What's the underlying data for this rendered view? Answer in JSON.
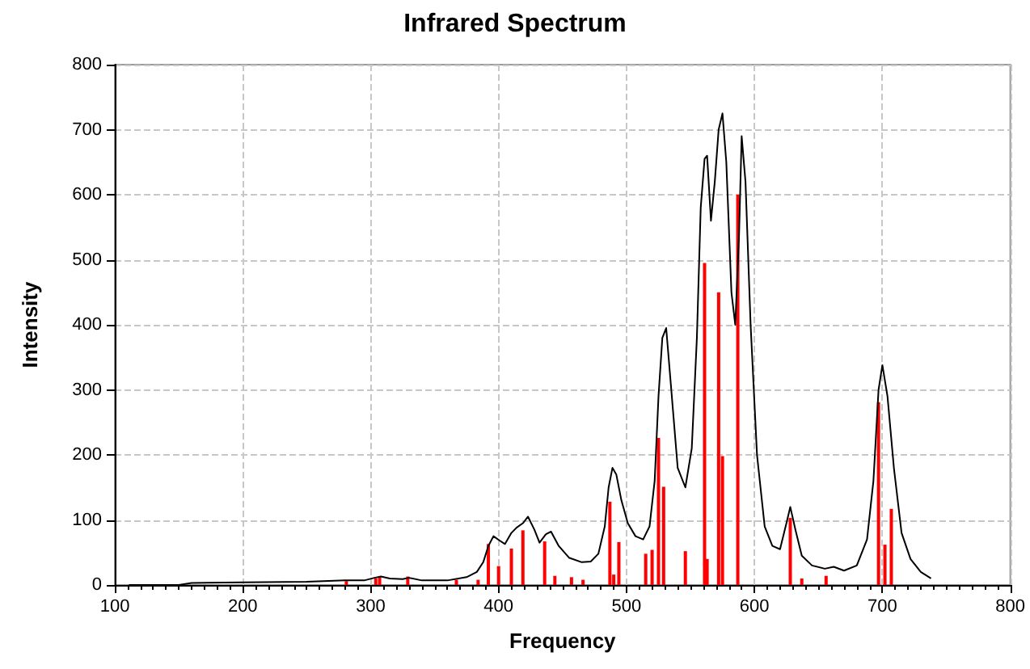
{
  "chart_data": {
    "type": "line",
    "title": "Infrared Spectrum",
    "xlabel": "Frequency",
    "ylabel": "Intensity",
    "xlim": [
      100,
      800
    ],
    "xticks": [
      100,
      200,
      300,
      400,
      500,
      600,
      700,
      800
    ],
    "ylim": [
      0,
      800
    ],
    "yticks": [
      0,
      100,
      200,
      300,
      400,
      500,
      600,
      700,
      800
    ],
    "grid": true,
    "marker": "none",
    "series": [
      {
        "color": "#000000",
        "x": [
          111,
          150,
          160,
          200,
          250,
          280,
          295,
          303,
          308,
          315,
          325,
          330,
          340,
          360,
          375,
          383,
          388,
          392,
          396,
          401,
          405,
          410,
          414,
          419,
          423,
          428,
          432,
          437,
          441,
          447,
          455,
          465,
          472,
          478,
          483,
          486,
          489,
          492,
          496,
          501,
          507,
          513,
          518,
          522,
          525,
          528,
          531,
          535,
          540,
          546,
          551,
          555,
          558,
          561,
          563,
          566,
          569,
          572,
          575,
          578,
          582,
          585,
          588,
          590,
          593,
          597,
          602,
          608,
          614,
          620,
          625,
          628,
          632,
          637,
          645,
          655,
          662,
          670,
          680,
          688,
          693,
          697,
          700,
          704,
          709,
          715,
          722,
          730,
          738
        ],
        "values": [
          0,
          0,
          3,
          4,
          5,
          7,
          7,
          11,
          13,
          10,
          9,
          11,
          7,
          7,
          12,
          20,
          35,
          60,
          75,
          68,
          63,
          80,
          88,
          95,
          105,
          85,
          65,
          78,
          82,
          60,
          42,
          35,
          36,
          48,
          90,
          150,
          180,
          170,
          130,
          95,
          75,
          70,
          90,
          160,
          290,
          380,
          395,
          300,
          180,
          150,
          210,
          380,
          580,
          655,
          660,
          560,
          620,
          700,
          725,
          650,
          450,
          400,
          540,
          690,
          620,
          400,
          200,
          90,
          60,
          55,
          95,
          120,
          85,
          45,
          30,
          25,
          28,
          22,
          30,
          70,
          160,
          300,
          338,
          290,
          180,
          80,
          40,
          20,
          10
        ]
      },
      {
        "type": "bar",
        "color": "#ff0000",
        "x": [
          281,
          304,
          307,
          329,
          367,
          384,
          392,
          400,
          410,
          419,
          436,
          444,
          457,
          466,
          487,
          490,
          494,
          515,
          520,
          525,
          529,
          546,
          561,
          563,
          572,
          575,
          587,
          628,
          637,
          656,
          697,
          702,
          707
        ],
        "values": [
          6,
          10,
          12,
          13,
          8,
          8,
          63,
          29,
          56,
          84,
          67,
          14,
          12,
          8,
          128,
          16,
          66,
          48,
          54,
          226,
          151,
          52,
          495,
          40,
          450,
          198,
          600,
          103,
          10,
          14,
          281,
          62,
          117
        ]
      }
    ]
  }
}
